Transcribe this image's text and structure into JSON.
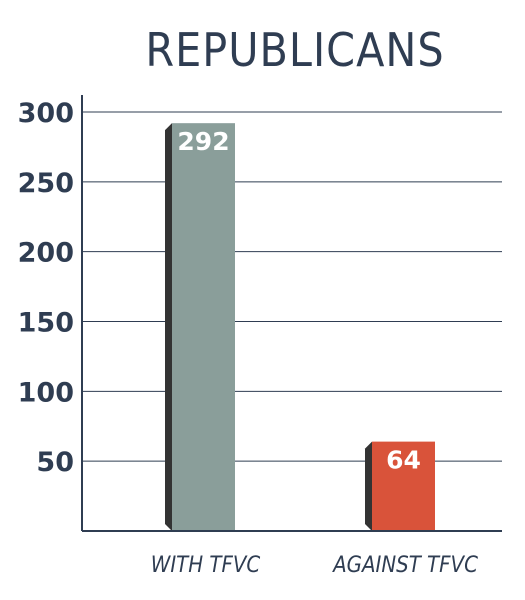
{
  "chart_data": {
    "type": "bar",
    "title": "REPUBLICANS",
    "xlabel": "",
    "ylabel": "",
    "categories": [
      "WITH TFVC",
      "AGAINST TFVC"
    ],
    "values": [
      292,
      64
    ],
    "data_labels": [
      "292",
      "64"
    ],
    "ylim": [
      0,
      300
    ],
    "yticks": [
      "50",
      "100",
      "150",
      "200",
      "250",
      "300"
    ],
    "grid": true,
    "legend": "none",
    "colors": {
      "bars": [
        "#8a9e9a",
        "#d9533a"
      ],
      "bar_side": "#333333",
      "grid": "#2f3d52",
      "text": "#2f3d52"
    }
  }
}
